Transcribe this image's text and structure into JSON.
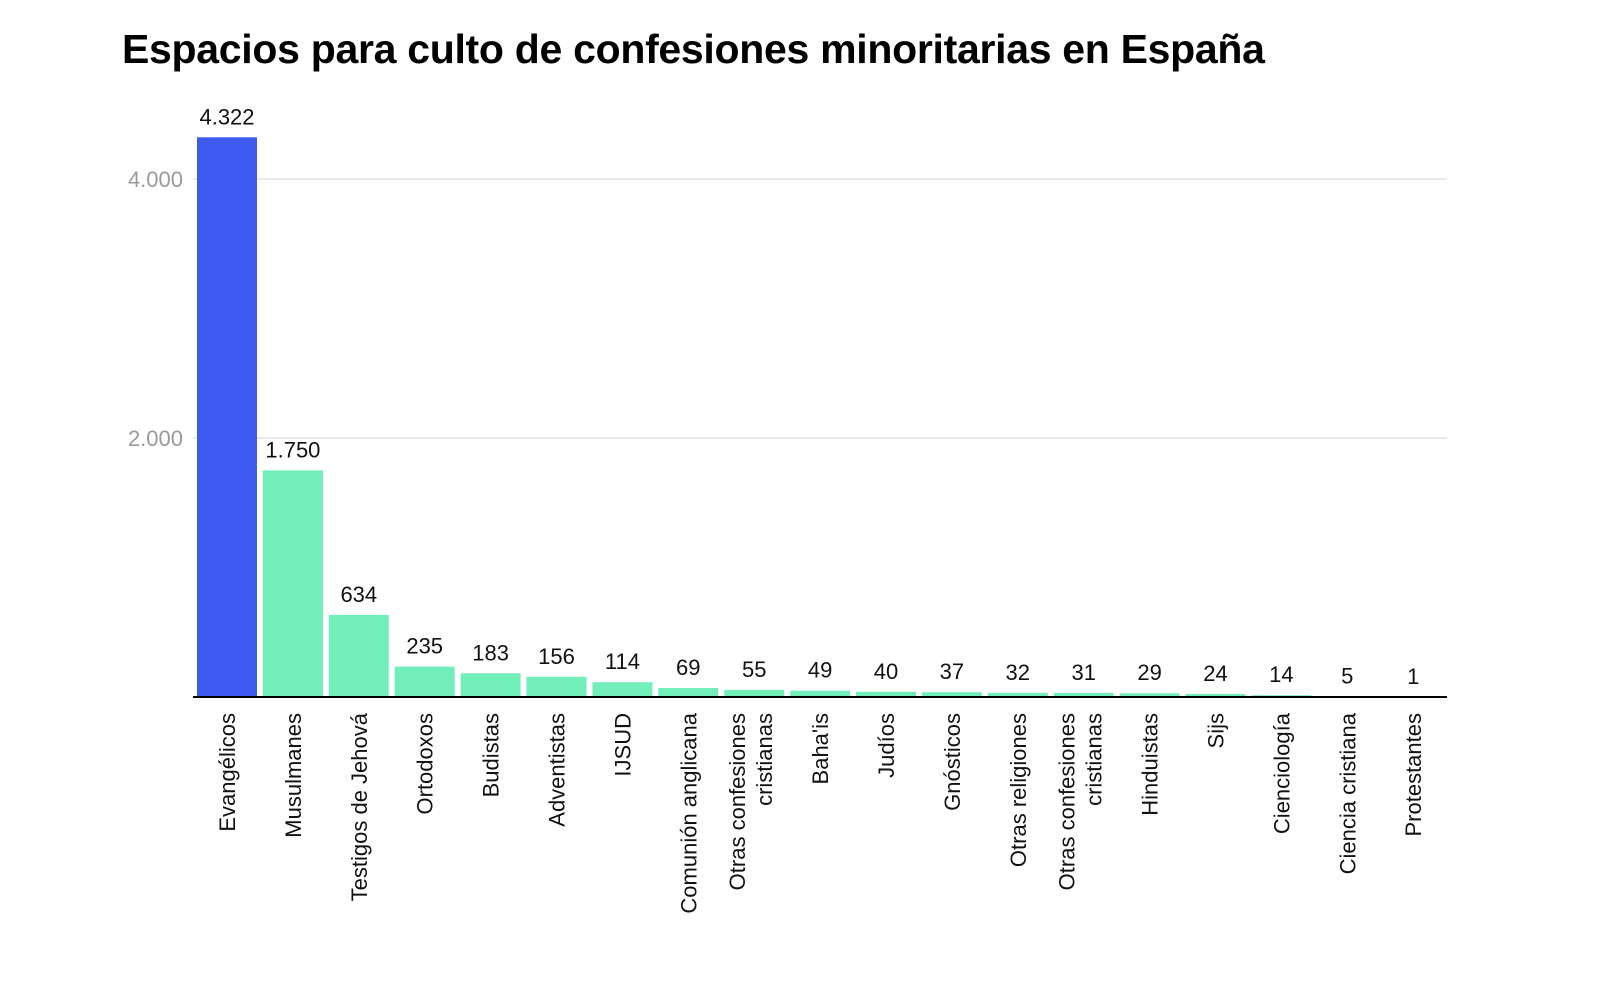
{
  "chart_data": {
    "type": "bar",
    "title": "Espacios para culto de confesiones minoritarias en España",
    "xlabel": "",
    "ylabel": "",
    "ylim": [
      0,
      4322
    ],
    "yticks": [
      2000,
      4000
    ],
    "ytick_labels": [
      "2.000",
      "4.000"
    ],
    "grid": true,
    "categories": [
      "Evangélicos",
      "Musulmanes",
      "Testigos de Jehová",
      "Ortodoxos",
      "Budistas",
      "Adventistas",
      "IJSUD",
      "Comunión anglicana",
      "Otras confesiones cristianas",
      "Baha'is",
      "Judíos",
      "Gnósticos",
      "Otras religiones",
      "Otras confesiones cristianas",
      "Hinduistas",
      "Sijs",
      "Cienciología",
      "Ciencia cristiana",
      "Protestantes"
    ],
    "values": [
      4322,
      1750,
      634,
      235,
      183,
      156,
      114,
      69,
      55,
      49,
      40,
      37,
      32,
      31,
      29,
      24,
      14,
      5,
      1
    ],
    "value_labels": [
      "4.322",
      "1.750",
      "634",
      "235",
      "183",
      "156",
      "114",
      "69",
      "55",
      "49",
      "40",
      "37",
      "32",
      "31",
      "29",
      "24",
      "14",
      "5",
      "1"
    ],
    "colors": {
      "highlight": "#3d5af1",
      "default": "#72efb9",
      "grid": "#e2e2e2",
      "axis": "#000000"
    },
    "highlight_index": 0
  }
}
